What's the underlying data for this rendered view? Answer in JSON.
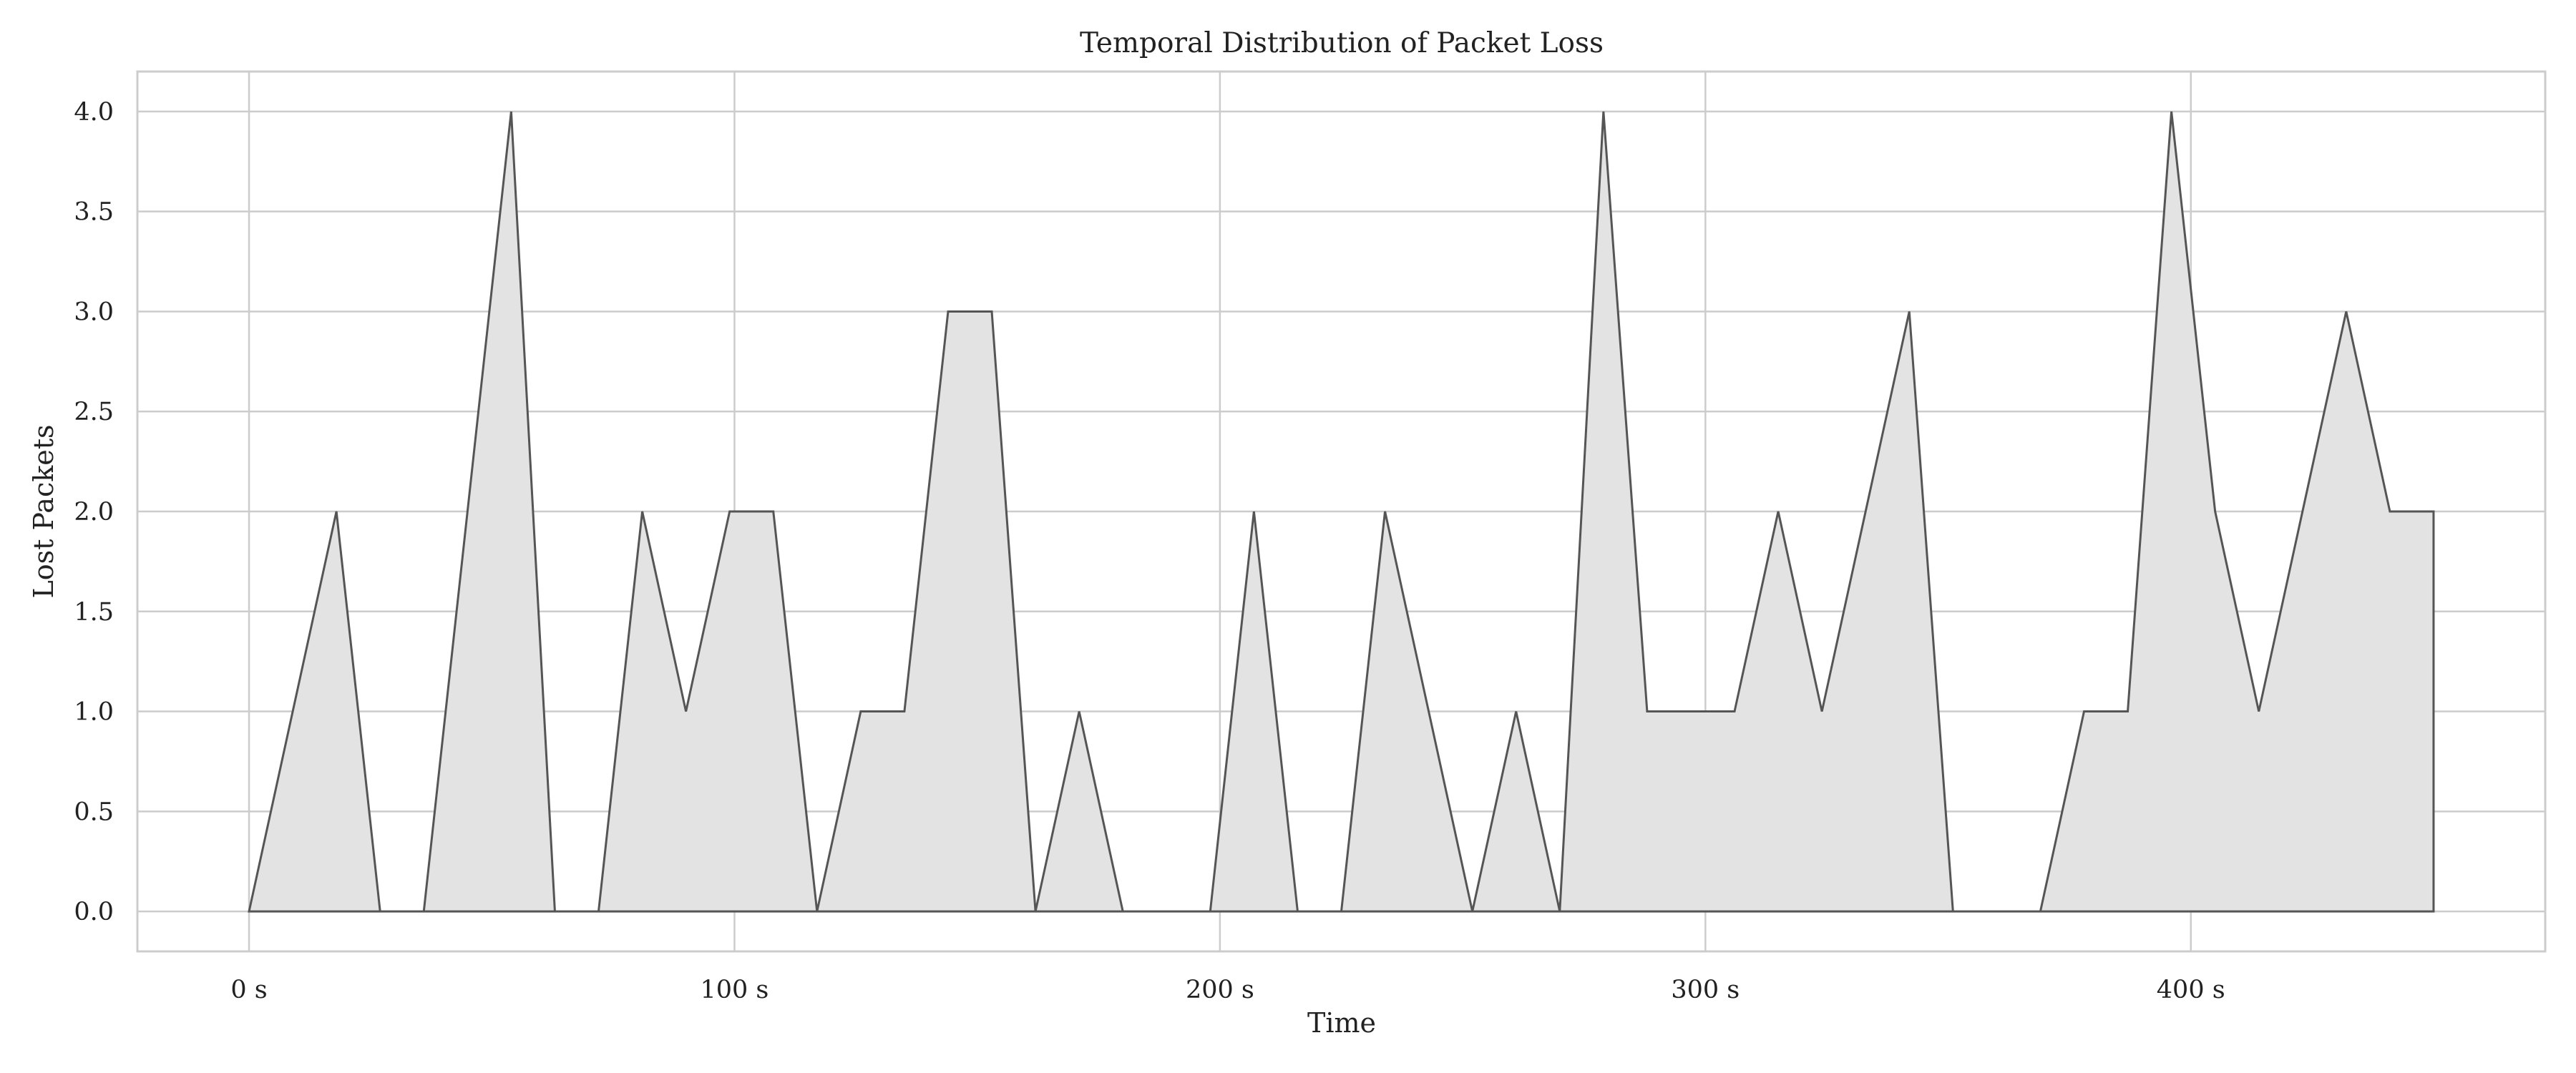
{
  "chart_data": {
    "type": "area",
    "title": "Temporal Distribution of Packet Loss",
    "xlabel": "Time",
    "ylabel": "Lost Packets",
    "x_ticks": [
      0,
      100,
      200,
      300,
      400
    ],
    "x_tick_labels": [
      "0 s",
      "100 s",
      "200 s",
      "300 s",
      "400 s"
    ],
    "y_ticks": [
      0.0,
      0.5,
      1.0,
      1.5,
      2.0,
      2.5,
      3.0,
      3.5,
      4.0
    ],
    "y_tick_labels": [
      "0.0",
      "0.5",
      "1.0",
      "1.5",
      "2.0",
      "2.5",
      "3.0",
      "3.5",
      "4.0"
    ],
    "xlim": [
      -23,
      473
    ],
    "ylim": [
      -0.2,
      4.2
    ],
    "grid": true,
    "colors": {
      "fill": "#e3e3e3",
      "line": "#555555",
      "grid": "#cccccc"
    },
    "series": [
      {
        "x": [
          0,
          9,
          18,
          27,
          36,
          45,
          54,
          63,
          72,
          81,
          90,
          99,
          108,
          117,
          126,
          135,
          144,
          153,
          162,
          171,
          180,
          189,
          198,
          207,
          216,
          225,
          234,
          243,
          252,
          261,
          270,
          279,
          288,
          297,
          306,
          315,
          324,
          333,
          342,
          351,
          360,
          369,
          378,
          387,
          396,
          405,
          414,
          423,
          432,
          441,
          450
        ],
        "values": [
          0,
          1,
          2,
          0,
          0,
          2,
          4,
          0,
          0,
          2,
          1,
          2,
          2,
          0,
          1,
          1,
          3,
          3,
          0,
          1,
          0,
          0,
          0,
          2,
          0,
          0,
          2,
          1,
          0,
          1,
          0,
          4,
          1,
          1,
          1,
          2,
          1,
          2,
          3,
          0,
          0,
          0,
          1,
          1,
          4,
          2,
          1,
          2,
          3,
          2,
          2
        ]
      }
    ]
  }
}
